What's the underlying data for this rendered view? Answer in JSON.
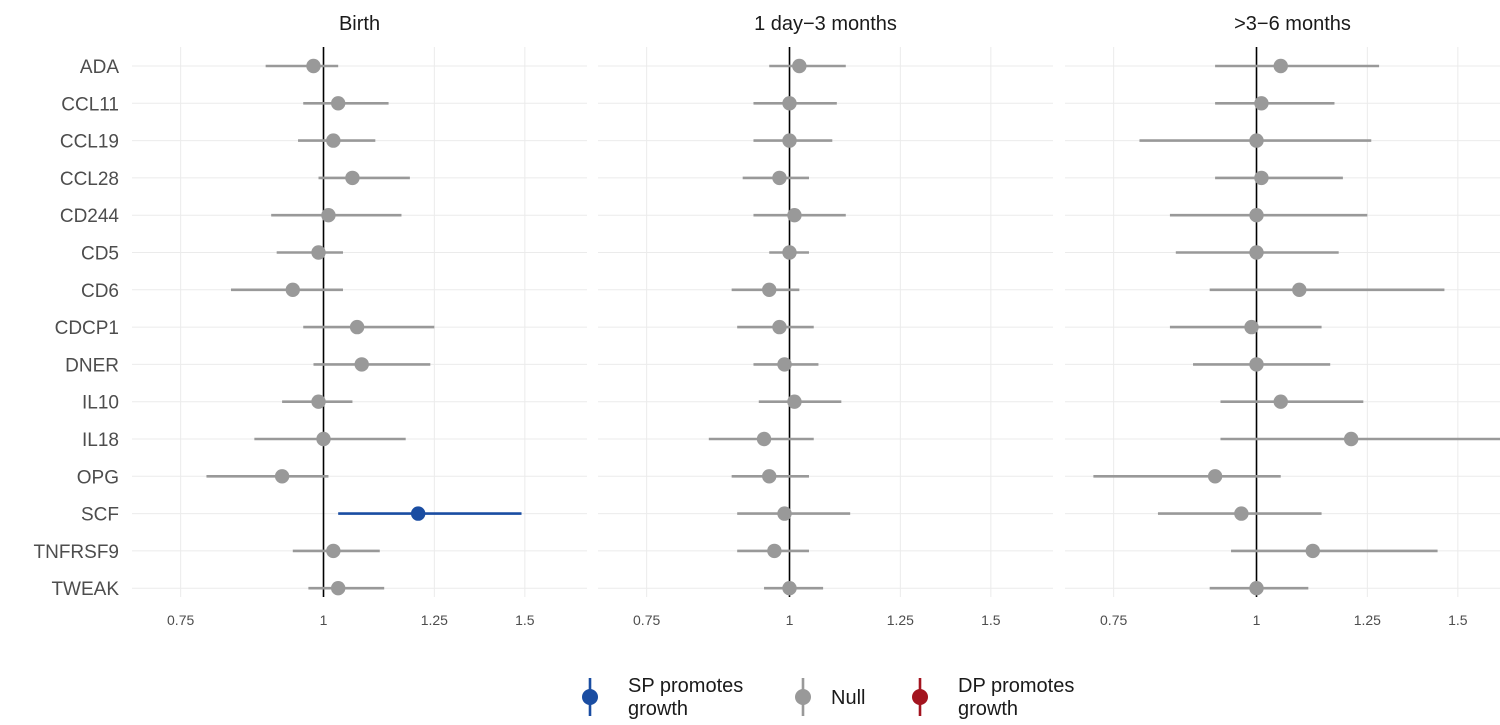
{
  "chart_data": {
    "type": "forest",
    "x_scale": "log",
    "xlim": [
      0.68,
      1.7
    ],
    "x_ticks": [
      0.75,
      1,
      1.25,
      1.5
    ],
    "x_tick_labels": [
      "0.75",
      "1",
      "1.25",
      "1.5"
    ],
    "reference_value": 1,
    "grid": true,
    "labels": [
      "ADA",
      "CCL11",
      "CCL19",
      "CCL28",
      "CD244",
      "CD5",
      "CD6",
      "CDCP1",
      "DNER",
      "IL10",
      "IL18",
      "OPG",
      "SCF",
      "TNFRSF9",
      "TWEAK"
    ],
    "panels": [
      {
        "title": "Birth",
        "estimates": [
          0.98,
          1.03,
          1.02,
          1.06,
          1.01,
          0.99,
          0.94,
          1.07,
          1.08,
          0.99,
          1.0,
          0.92,
          1.21,
          1.02,
          1.03
        ],
        "lower": [
          0.89,
          0.96,
          0.95,
          0.99,
          0.9,
          0.91,
          0.83,
          0.96,
          0.98,
          0.92,
          0.87,
          0.79,
          1.03,
          0.94,
          0.97
        ],
        "upper": [
          1.03,
          1.14,
          1.11,
          1.19,
          1.17,
          1.04,
          1.04,
          1.25,
          1.24,
          1.06,
          1.18,
          1.01,
          1.49,
          1.12,
          1.13
        ],
        "category": [
          "Null",
          "Null",
          "Null",
          "Null",
          "Null",
          "Null",
          "Null",
          "Null",
          "Null",
          "Null",
          "Null",
          "Null",
          "SP promotes growth",
          "Null",
          "Null"
        ]
      },
      {
        "title": "1 day−3 months",
        "estimates": [
          1.02,
          1.0,
          1.0,
          0.98,
          1.01,
          1.0,
          0.96,
          0.98,
          0.99,
          1.01,
          0.95,
          0.96,
          0.99,
          0.97,
          1.0
        ],
        "lower": [
          0.96,
          0.93,
          0.93,
          0.91,
          0.93,
          0.96,
          0.89,
          0.9,
          0.93,
          0.94,
          0.85,
          0.89,
          0.9,
          0.9,
          0.95
        ],
        "upper": [
          1.12,
          1.1,
          1.09,
          1.04,
          1.12,
          1.04,
          1.02,
          1.05,
          1.06,
          1.11,
          1.05,
          1.04,
          1.13,
          1.04,
          1.07
        ],
        "category": [
          "Null",
          "Null",
          "Null",
          "Null",
          "Null",
          "Null",
          "Null",
          "Null",
          "Null",
          "Null",
          "Null",
          "Null",
          "Null",
          "Null",
          "Null"
        ]
      },
      {
        "title": ">3−6 months",
        "estimates": [
          1.05,
          1.01,
          1.0,
          1.01,
          1.0,
          1.0,
          1.09,
          0.99,
          1.0,
          1.05,
          1.21,
          0.92,
          0.97,
          1.12,
          1.0
        ],
        "lower": [
          0.92,
          0.92,
          0.79,
          0.92,
          0.84,
          0.85,
          0.91,
          0.84,
          0.88,
          0.93,
          0.93,
          0.72,
          0.82,
          0.95,
          0.91
        ],
        "upper": [
          1.28,
          1.17,
          1.26,
          1.19,
          1.25,
          1.18,
          1.46,
          1.14,
          1.16,
          1.24,
          1.66,
          1.05,
          1.14,
          1.44,
          1.11
        ],
        "category": [
          "Null",
          "Null",
          "Null",
          "Null",
          "Null",
          "Null",
          "Null",
          "Null",
          "Null",
          "Null",
          "Null",
          "Null",
          "Null",
          "Null",
          "Null"
        ]
      }
    ],
    "legend": {
      "position": "bottom",
      "entries": [
        {
          "label_lines": [
            "SP promotes",
            "growth"
          ],
          "key": "SP promotes growth",
          "color": "#1a4da2"
        },
        {
          "label_lines": [
            "Null"
          ],
          "key": "Null",
          "color": "#999999"
        },
        {
          "label_lines": [
            "DP promotes",
            "growth"
          ],
          "key": "DP promotes growth",
          "color": "#a3141f"
        }
      ]
    }
  }
}
